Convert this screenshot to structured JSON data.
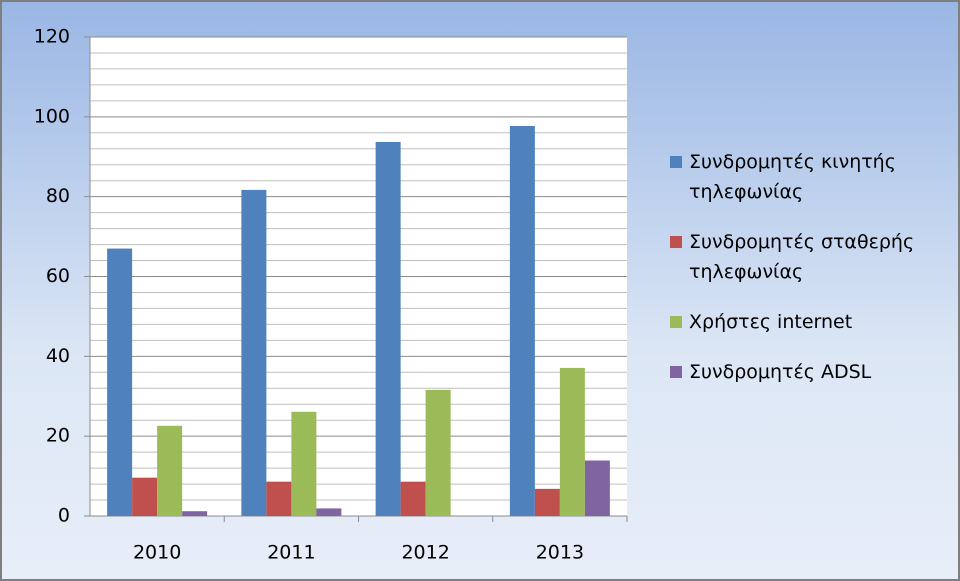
{
  "chart_data": {
    "type": "bar",
    "categories": [
      "2010",
      "2011",
      "2012",
      "2013"
    ],
    "series": [
      {
        "name": "Συνδρομητές κινητής τηλεφωνίας",
        "color": "#4f81bd",
        "values": [
          67,
          81.7,
          93.7,
          97.7
        ]
      },
      {
        "name": "Συνδρομητές σταθερής τηλεφωνίας",
        "color": "#c0504d",
        "values": [
          9.6,
          8.6,
          8.6,
          6.8
        ]
      },
      {
        "name": "Χρήστες internet",
        "color": "#9bbb59",
        "values": [
          22.6,
          26.1,
          31.6,
          37.1
        ]
      },
      {
        "name": "Συνδρομητές ADSL",
        "color": "#8064a2",
        "values": [
          1.2,
          1.9,
          null,
          13.9
        ]
      }
    ],
    "ylim": [
      0,
      120
    ],
    "yticks": [
      0,
      20,
      40,
      60,
      80,
      100,
      120
    ],
    "grid": true,
    "legend": "right"
  }
}
